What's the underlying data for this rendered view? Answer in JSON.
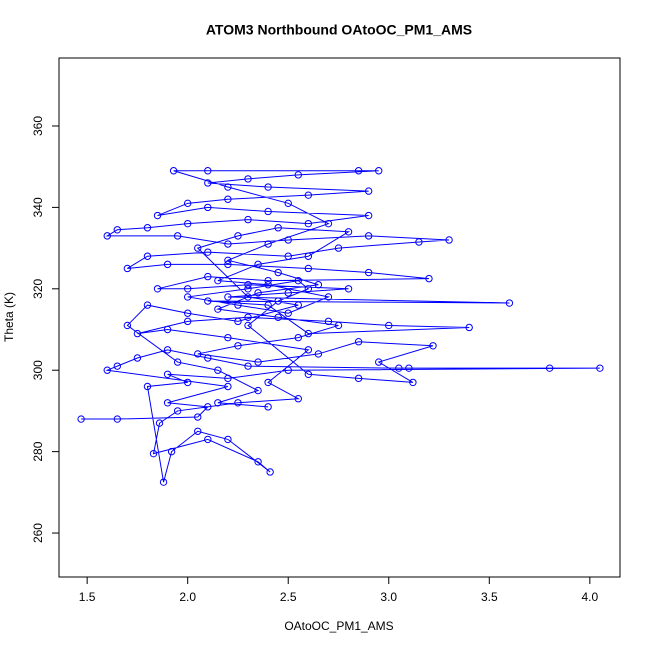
{
  "chart_data": {
    "type": "line",
    "markers": true,
    "title": "ATOM3 Northbound OAtoOC_PM1_AMS",
    "xlabel": "OAtoOC_PM1_AMS",
    "ylabel": "Theta (K)",
    "xlim": [
      1.36,
      4.15
    ],
    "ylim": [
      249.2,
      376.7
    ],
    "xticks": [
      1.5,
      {
        "value": 2,
        "label": "2.0"
      },
      2.5,
      {
        "value": 3,
        "label": "3.0"
      },
      3.5,
      {
        "value": 4,
        "label": "4.0"
      }
    ],
    "yticks": [
      260,
      280,
      300,
      320,
      340,
      360
    ],
    "x": [
      1.47,
      1.65,
      2.05,
      2.1,
      1.9,
      2.2,
      1.6,
      1.65,
      1.75,
      1.9,
      2.1,
      2.3,
      3.05,
      3.1,
      3.8,
      4.05,
      2.5,
      2.2,
      1.9,
      2.0,
      1.8,
      1.88,
      1.92,
      2.05,
      2.2,
      2.41,
      2.35,
      2.1,
      1.83,
      1.86,
      1.95,
      2.25,
      2.55,
      2.4,
      2.6,
      2.2,
      1.9,
      1.75,
      2.0,
      2.3,
      2.7,
      3.0,
      3.4,
      2.6,
      2.4,
      2.1,
      3.6,
      2.2,
      2.5,
      2.8,
      2.3,
      2.0,
      1.85,
      2.1,
      2.4,
      3.2,
      2.9,
      2.6,
      2.2,
      1.9,
      1.7,
      1.8,
      2.1,
      2.5,
      2.75,
      3.15,
      3.3,
      2.9,
      2.5,
      2.2,
      1.95,
      1.6,
      1.65,
      1.8,
      2.0,
      2.3,
      2.6,
      2.9,
      2.4,
      2.1,
      1.85,
      2.0,
      2.2,
      2.6,
      2.9,
      2.4,
      2.1,
      2.3,
      2.55,
      2.95,
      2.85,
      2.1,
      1.93,
      2.2,
      2.5,
      2.7,
      2.4,
      2.2,
      2.45,
      2.65,
      2.35,
      2.15,
      2.45,
      2.75,
      2.55,
      2.25,
      2.05,
      2.35,
      2.65,
      2.85,
      3.22,
      2.95,
      3.12,
      2.85,
      2.6,
      2.3,
      2.45,
      2.6,
      2.55,
      2.3,
      2.0,
      2.25,
      2.5,
      2.7,
      2.4,
      2.15,
      2.35,
      2.6,
      2.8,
      2.45,
      2.25,
      2.05,
      2.3,
      2.55,
      2.25,
      2.0,
      1.8,
      1.7,
      1.95,
      2.15,
      2.35,
      2.15,
      2.4
    ],
    "series": [
      {
        "name": "Theta",
        "color": "#0000ff",
        "values": [
          288,
          288,
          288.5,
          291,
          292,
          296,
          300,
          301,
          303,
          305,
          303,
          301,
          300.5,
          300.5,
          300.5,
          300.5,
          300,
          298,
          299,
          297,
          296,
          272.5,
          280,
          285,
          283,
          275,
          277.5,
          283,
          279.5,
          287,
          290,
          292,
          293,
          297,
          305,
          308,
          310,
          309,
          312,
          313,
          312,
          311,
          310.5,
          309,
          316,
          317,
          316.5,
          318,
          319,
          320,
          321,
          320,
          320,
          323,
          322,
          322.5,
          324,
          325,
          326,
          326,
          325,
          328,
          329,
          328,
          330,
          331.5,
          332,
          333,
          332,
          331,
          333,
          333,
          334.5,
          335,
          336,
          337,
          336,
          338,
          339,
          340,
          338,
          341,
          342,
          343,
          344,
          345,
          346,
          347,
          348,
          349,
          349,
          349,
          349,
          345,
          341,
          336,
          331,
          327,
          324,
          321,
          319,
          315,
          313,
          311,
          308,
          306,
          304,
          302,
          304,
          307,
          306,
          302,
          297,
          298,
          299,
          311,
          317,
          320,
          322,
          320,
          318,
          316,
          314,
          318,
          321,
          322,
          326,
          328,
          334,
          335,
          333,
          330,
          318,
          316,
          312,
          314,
          316,
          311,
          302,
          300,
          295,
          292,
          291
        ]
      }
    ]
  }
}
